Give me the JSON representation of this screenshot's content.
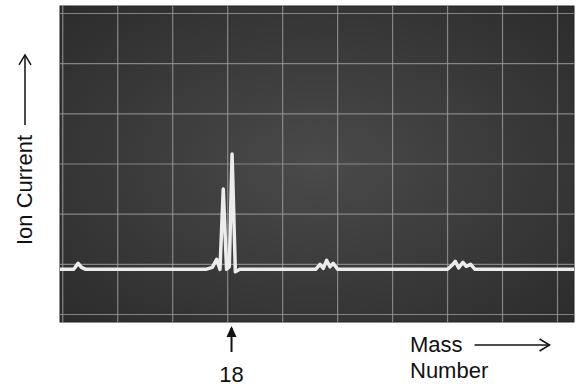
{
  "chart_data": {
    "type": "line",
    "x_label": "Mass Number",
    "y_label": "Ion Current",
    "annotations": [
      {
        "text": "18",
        "x": 3.07
      }
    ],
    "xlim": [
      -0.05,
      9.3
    ],
    "ylim": [
      -0.15,
      6.15
    ],
    "xticks": [
      0,
      1,
      2,
      3,
      4,
      5,
      6,
      7,
      8,
      9
    ],
    "yticks": [
      0,
      1,
      2,
      3,
      4,
      5,
      6
    ],
    "grid": true,
    "tick_labels": false,
    "series": [
      {
        "name": "Ion Current",
        "color": "#ececec",
        "line_style": "solid",
        "x": [
          -0.05,
          0.2,
          0.28,
          0.34,
          0.42,
          2.6,
          2.72,
          2.8,
          2.86,
          2.92,
          2.98,
          3.03,
          3.08,
          3.14,
          3.22,
          3.3,
          4.6,
          4.68,
          4.74,
          4.8,
          4.86,
          4.92,
          5.0,
          7.0,
          7.08,
          7.14,
          7.2,
          7.28,
          7.34,
          7.42,
          7.5,
          9.3
        ],
        "values": [
          0.9,
          0.9,
          1.02,
          0.94,
          0.9,
          0.9,
          0.94,
          1.1,
          0.9,
          2.5,
          0.9,
          0.95,
          3.2,
          0.85,
          0.9,
          0.9,
          0.9,
          1.0,
          0.92,
          1.08,
          0.95,
          1.02,
          0.9,
          0.9,
          0.98,
          1.06,
          0.93,
          1.04,
          0.96,
          1.0,
          0.9,
          0.9
        ]
      }
    ]
  }
}
